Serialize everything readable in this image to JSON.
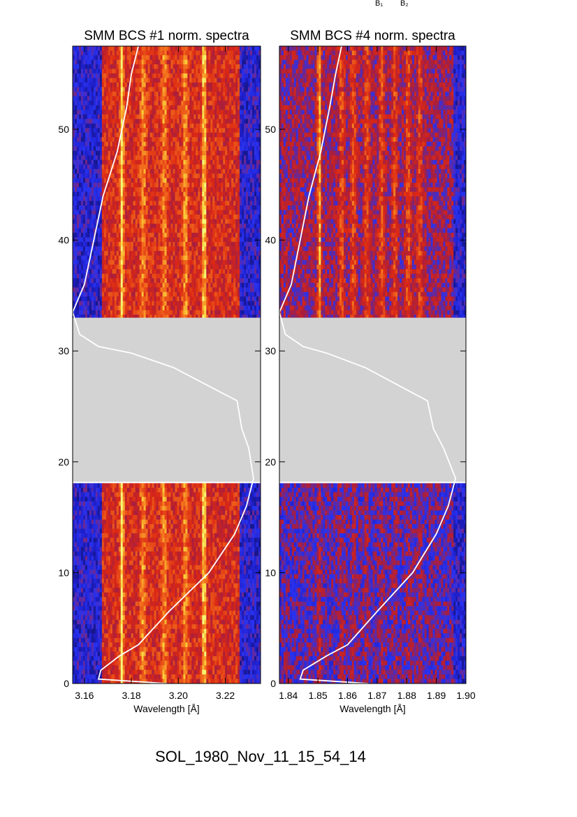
{
  "page_title": "SOL_1980_Nov_11_15_54_14",
  "top_labels": [
    "B₁",
    "B₂"
  ],
  "colors": {
    "gap_fill": "#d3d3d3",
    "curve": "#ffffff",
    "background": "#ffffff"
  },
  "chart_data": [
    {
      "type": "heatmap",
      "title": "SMM BCS #1 norm. spectra",
      "xlabel": "Wavelength [Å]",
      "ylabel": "",
      "xlim": [
        3.155,
        3.235
      ],
      "ylim": [
        0,
        57.5
      ],
      "x_ticks": [
        3.16,
        3.18,
        3.2,
        3.22
      ],
      "x_tick_labels": [
        "3.16",
        "3.18",
        "3.20",
        "3.22"
      ],
      "y_ticks": [
        0,
        10,
        20,
        30,
        40,
        50
      ],
      "y_tick_labels": [
        "0",
        "10",
        "20",
        "30",
        "40",
        "50"
      ],
      "data_gap": [
        18.2,
        33.0
      ],
      "colormap": "blue-red-yellow",
      "bright_lines": [
        {
          "wavelength": 3.176,
          "intensity": "high"
        },
        {
          "wavelength": 3.185,
          "intensity": "medium"
        },
        {
          "wavelength": 3.194,
          "intensity": "medium"
        },
        {
          "wavelength": 3.203,
          "intensity": "medium"
        },
        {
          "wavelength": 3.211,
          "intensity": "high"
        }
      ],
      "edge_blue_bands": [
        [
          3.155,
          3.167
        ],
        [
          3.226,
          3.235
        ]
      ],
      "overlay_curve": {
        "color": "white",
        "points": [
          [
            3.183,
            57.5
          ],
          [
            3.18,
            55
          ],
          [
            3.178,
            52
          ],
          [
            3.174,
            48
          ],
          [
            3.168,
            44
          ],
          [
            3.164,
            40
          ],
          [
            3.16,
            36
          ],
          [
            3.155,
            33.5
          ],
          [
            3.158,
            31.5
          ],
          [
            3.166,
            30.4
          ],
          [
            3.18,
            29.8
          ],
          [
            3.198,
            28.5
          ],
          [
            3.216,
            26.5
          ],
          [
            3.225,
            25.5
          ],
          [
            3.227,
            23
          ],
          [
            3.23,
            21.2
          ],
          [
            3.232,
            18.5
          ],
          [
            3.229,
            16
          ],
          [
            3.224,
            13.5
          ],
          [
            3.213,
            10
          ],
          [
            3.196,
            6.5
          ],
          [
            3.183,
            3.5
          ],
          [
            3.175,
            2.5
          ],
          [
            3.167,
            1.2
          ],
          [
            3.166,
            0.4
          ],
          [
            3.195,
            0
          ]
        ]
      }
    },
    {
      "type": "heatmap",
      "title": "SMM BCS #4 norm. spectra",
      "xlabel": "Wavelength [Å]",
      "ylabel": "",
      "xlim": [
        1.837,
        1.9
      ],
      "ylim": [
        0,
        57.5
      ],
      "x_ticks": [
        1.84,
        1.85,
        1.86,
        1.87,
        1.88,
        1.89,
        1.9
      ],
      "x_tick_labels": [
        "1.84",
        "1.85",
        "1.86",
        "1.87",
        "1.88",
        "1.89",
        "1.90"
      ],
      "y_ticks": [
        0,
        10,
        20,
        30,
        40,
        50
      ],
      "y_tick_labels": [
        "0",
        "10",
        "20",
        "30",
        "40",
        "50"
      ],
      "data_gap": [
        18.2,
        33.0
      ],
      "colormap": "blue-red-yellow",
      "bright_lines": [
        {
          "wavelength": 1.8505,
          "intensity": "high"
        },
        {
          "wavelength": 1.858,
          "intensity": "medium"
        },
        {
          "wavelength": 1.862,
          "intensity": "medium"
        },
        {
          "wavelength": 1.8665,
          "intensity": "medium"
        },
        {
          "wavelength": 1.8715,
          "intensity": "medium"
        },
        {
          "wavelength": 1.876,
          "intensity": "medium"
        },
        {
          "wavelength": 1.8805,
          "intensity": "medium"
        },
        {
          "wavelength": 1.8845,
          "intensity": "medium"
        }
      ],
      "edge_blue_bands": [
        [
          1.8955,
          1.9
        ]
      ],
      "overlay_curve": {
        "color": "white",
        "points": [
          [
            1.858,
            57.5
          ],
          [
            1.856,
            55
          ],
          [
            1.854,
            52
          ],
          [
            1.851,
            48
          ],
          [
            1.847,
            44
          ],
          [
            1.844,
            40
          ],
          [
            1.841,
            36
          ],
          [
            1.837,
            33.5
          ],
          [
            1.839,
            31.5
          ],
          [
            1.845,
            30.4
          ],
          [
            1.853,
            29.8
          ],
          [
            1.866,
            28.5
          ],
          [
            1.88,
            26.5
          ],
          [
            1.887,
            25.5
          ],
          [
            1.889,
            23
          ],
          [
            1.8925,
            21.2
          ],
          [
            1.8965,
            18.5
          ],
          [
            1.894,
            16
          ],
          [
            1.89,
            13.5
          ],
          [
            1.882,
            10
          ],
          [
            1.87,
            6.5
          ],
          [
            1.86,
            3.5
          ],
          [
            1.853,
            2.5
          ],
          [
            1.845,
            1.2
          ],
          [
            1.844,
            0.4
          ],
          [
            1.867,
            0
          ]
        ]
      }
    }
  ]
}
